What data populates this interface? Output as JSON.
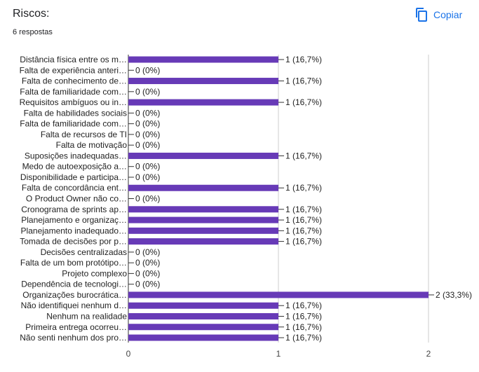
{
  "header": {
    "title": "Riscos:",
    "responses": "6 respostas",
    "copy_label": "Copiar",
    "copy_icon": "copy-icon",
    "accent": "#1a73e8"
  },
  "chart_data": {
    "type": "bar",
    "orientation": "horizontal",
    "title": "Riscos:",
    "bar_color": "#673ab7",
    "xlim": [
      0,
      2
    ],
    "x_ticks": [
      "0",
      "1",
      "2"
    ],
    "grid": true,
    "categories": [
      "Distância física entre os m…",
      "Falta de experiência anteri…",
      "Falta de conhecimento de…",
      "Falta de familiaridade com…",
      "Requisitos ambíguos ou in…",
      "Falta de habilidades sociais",
      "Falta de familiaridade com…",
      "Falta de recursos de TI",
      "Falta de motivação",
      "Suposições inadequadas…",
      "Medo de autoexposição a…",
      "Disponibilidade e participa…",
      "Falta de concordância ent…",
      "O Product Owner não co…",
      "Cronograma de sprints ap…",
      "Planejamento e organizaç…",
      "Planejamento inadequado…",
      "Tomada de decisões por p…",
      "Decisões centralizadas",
      "Falta de um bom protótipo…",
      "Projeto complexo",
      "Dependência de tecnologi…",
      "Organizações burocrática…",
      "Não identifiquei nenhum d…",
      "Nenhum na realidade",
      "Primeira entrega ocorreu…",
      "Não senti nenhum dos pro…"
    ],
    "values": [
      1,
      0,
      1,
      0,
      1,
      0,
      0,
      0,
      0,
      1,
      0,
      0,
      1,
      0,
      1,
      1,
      1,
      1,
      0,
      0,
      0,
      0,
      2,
      1,
      1,
      1,
      1
    ],
    "value_labels": [
      "1 (16,7%)",
      "0 (0%)",
      "1 (16,7%)",
      "0 (0%)",
      "1 (16,7%)",
      "0 (0%)",
      "0 (0%)",
      "0 (0%)",
      "0 (0%)",
      "1 (16,7%)",
      "0 (0%)",
      "0 (0%)",
      "1 (16,7%)",
      "0 (0%)",
      "1 (16,7%)",
      "1 (16,7%)",
      "1 (16,7%)",
      "1 (16,7%)",
      "0 (0%)",
      "0 (0%)",
      "0 (0%)",
      "0 (0%)",
      "2 (33,3%)",
      "1 (16,7%)",
      "1 (16,7%)",
      "1 (16,7%)",
      "1 (16,7%)"
    ]
  }
}
